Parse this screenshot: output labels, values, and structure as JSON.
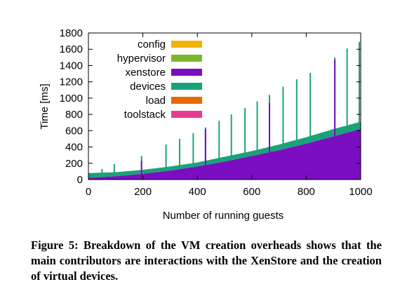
{
  "chart_data": {
    "type": "area",
    "xlabel": "Number of running guests",
    "ylabel": "Time [ms]",
    "xlim": [
      0,
      1000
    ],
    "ylim": [
      0,
      1800
    ],
    "xticks": [
      0,
      200,
      400,
      600,
      800,
      1000
    ],
    "yticks": [
      0,
      200,
      400,
      600,
      800,
      1000,
      1200,
      1400,
      1600,
      1800
    ],
    "stacked": true,
    "legend_position": "top-left",
    "series": [
      {
        "name": "config",
        "color": "#f0b400"
      },
      {
        "name": "hypervisor",
        "color": "#7bb72c"
      },
      {
        "name": "xenstore",
        "color": "#7b0ec0",
        "x": [
          0,
          100,
          200,
          300,
          400,
          500,
          600,
          700,
          800,
          900,
          1000
        ],
        "values": [
          20,
          40,
          70,
          110,
          160,
          220,
          290,
          360,
          440,
          530,
          620
        ]
      },
      {
        "name": "devices",
        "color": "#1ba27a",
        "x": [
          0,
          100,
          200,
          300,
          400,
          500,
          600,
          700,
          800,
          900,
          1000
        ],
        "values": [
          60,
          50,
          50,
          50,
          50,
          60,
          60,
          70,
          80,
          90,
          90
        ]
      },
      {
        "name": "load",
        "color": "#e66a00"
      },
      {
        "name": "toolstack",
        "color": "#e83b8d"
      }
    ],
    "spikes": [
      {
        "x": 50,
        "total": 130,
        "xenstore": 0
      },
      {
        "x": 95,
        "total": 190,
        "xenstore": 0
      },
      {
        "x": 195,
        "total": 290,
        "xenstore": 230
      },
      {
        "x": 285,
        "total": 430,
        "xenstore": 0
      },
      {
        "x": 335,
        "total": 500,
        "xenstore": 0
      },
      {
        "x": 385,
        "total": 570,
        "xenstore": 0
      },
      {
        "x": 430,
        "total": 640,
        "xenstore": 620
      },
      {
        "x": 480,
        "total": 720,
        "xenstore": 0
      },
      {
        "x": 525,
        "total": 800,
        "xenstore": 0
      },
      {
        "x": 575,
        "total": 880,
        "xenstore": 0
      },
      {
        "x": 620,
        "total": 960,
        "xenstore": 0
      },
      {
        "x": 665,
        "total": 1040,
        "xenstore": 940
      },
      {
        "x": 715,
        "total": 1140,
        "xenstore": 0
      },
      {
        "x": 765,
        "total": 1230,
        "xenstore": 0
      },
      {
        "x": 815,
        "total": 1310,
        "xenstore": 0
      },
      {
        "x": 905,
        "total": 1500,
        "xenstore": 1470
      },
      {
        "x": 950,
        "total": 1610,
        "xenstore": 0
      },
      {
        "x": 995,
        "total": 1690,
        "xenstore": 0
      }
    ]
  },
  "caption": "Figure 5: Breakdown of the VM creation overheads shows that the main contributors are interactions with the XenStore and the creation of virtual devices."
}
